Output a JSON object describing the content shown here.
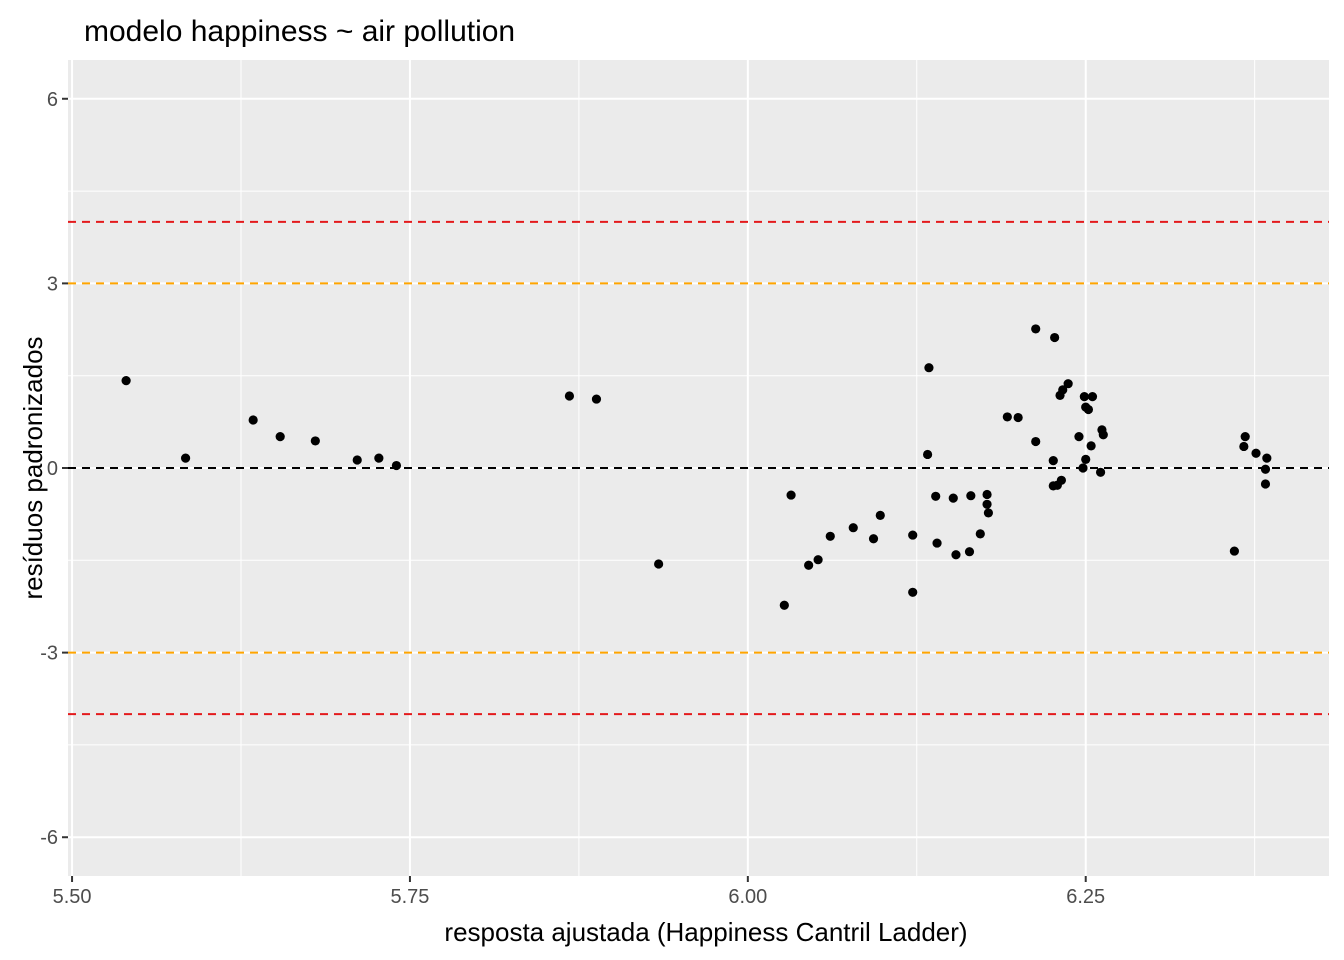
{
  "chart_data": {
    "type": "scatter",
    "title": "modelo happiness ~ air pollution",
    "xlabel": "resposta ajustada (Happiness Cantril Ladder)",
    "ylabel": "resíduos padronizados",
    "xlim": [
      5.497,
      6.43
    ],
    "ylim": [
      -6.63,
      6.63
    ],
    "x_ticks": [
      5.5,
      5.75,
      6.0,
      6.25
    ],
    "x_tick_labels": [
      "5.50",
      "5.75",
      "6.00",
      "6.25"
    ],
    "x_minor_ticks": [
      5.625,
      5.875,
      6.125,
      6.375
    ],
    "y_ticks": [
      -6,
      -3,
      0,
      3,
      6
    ],
    "y_tick_labels": [
      "-6",
      "-3",
      "0",
      "3",
      "6"
    ],
    "y_minor_ticks": [
      -4.5,
      -1.5,
      1.5,
      4.5
    ],
    "grid": true,
    "panel_background": "#ebebeb",
    "reference_lines": [
      {
        "y": 4,
        "color": "#e41a1c",
        "style": "dashed"
      },
      {
        "y": 3,
        "color": "#ffa500",
        "style": "dashed"
      },
      {
        "y": 0,
        "color": "#000000",
        "style": "dashed"
      },
      {
        "y": -3,
        "color": "#ffa500",
        "style": "dashed"
      },
      {
        "y": -4,
        "color": "#e41a1c",
        "style": "dashed"
      }
    ],
    "point_color": "#000000",
    "points": [
      {
        "x": 5.54,
        "y": 1.42
      },
      {
        "x": 5.584,
        "y": 0.16
      },
      {
        "x": 5.634,
        "y": 0.78
      },
      {
        "x": 5.654,
        "y": 0.51
      },
      {
        "x": 5.68,
        "y": 0.44
      },
      {
        "x": 5.711,
        "y": 0.13
      },
      {
        "x": 5.727,
        "y": 0.16
      },
      {
        "x": 5.74,
        "y": 0.04
      },
      {
        "x": 5.868,
        "y": 1.17
      },
      {
        "x": 5.888,
        "y": 1.12
      },
      {
        "x": 5.934,
        "y": -1.56
      },
      {
        "x": 6.027,
        "y": -2.23
      },
      {
        "x": 6.032,
        "y": -0.44
      },
      {
        "x": 6.045,
        "y": -1.58
      },
      {
        "x": 6.052,
        "y": -1.49
      },
      {
        "x": 6.061,
        "y": -1.11
      },
      {
        "x": 6.078,
        "y": -0.97
      },
      {
        "x": 6.093,
        "y": -1.15
      },
      {
        "x": 6.098,
        "y": -0.77
      },
      {
        "x": 6.122,
        "y": -2.02
      },
      {
        "x": 6.122,
        "y": -1.09
      },
      {
        "x": 6.133,
        "y": 0.22
      },
      {
        "x": 6.134,
        "y": 1.63
      },
      {
        "x": 6.139,
        "y": -0.46
      },
      {
        "x": 6.14,
        "y": -1.22
      },
      {
        "x": 6.152,
        "y": -0.49
      },
      {
        "x": 6.154,
        "y": -1.41
      },
      {
        "x": 6.164,
        "y": -1.36
      },
      {
        "x": 6.165,
        "y": -0.45
      },
      {
        "x": 6.172,
        "y": -1.07
      },
      {
        "x": 6.177,
        "y": -0.43
      },
      {
        "x": 6.177,
        "y": -0.59
      },
      {
        "x": 6.178,
        "y": -0.73
      },
      {
        "x": 6.192,
        "y": 0.83
      },
      {
        "x": 6.2,
        "y": 0.82
      },
      {
        "x": 6.213,
        "y": 2.26
      },
      {
        "x": 6.213,
        "y": 0.43
      },
      {
        "x": 6.226,
        "y": 0.12
      },
      {
        "x": 6.226,
        "y": -0.29
      },
      {
        "x": 6.227,
        "y": 2.12
      },
      {
        "x": 6.229,
        "y": -0.28
      },
      {
        "x": 6.231,
        "y": 1.18
      },
      {
        "x": 6.232,
        "y": -0.2
      },
      {
        "x": 6.233,
        "y": 1.27
      },
      {
        "x": 6.237,
        "y": 1.37
      },
      {
        "x": 6.245,
        "y": 0.51
      },
      {
        "x": 6.248,
        "y": 0.0
      },
      {
        "x": 6.249,
        "y": 1.16
      },
      {
        "x": 6.25,
        "y": 0.14
      },
      {
        "x": 6.25,
        "y": 0.99
      },
      {
        "x": 6.252,
        "y": 0.95
      },
      {
        "x": 6.254,
        "y": 0.36
      },
      {
        "x": 6.255,
        "y": 1.16
      },
      {
        "x": 6.261,
        "y": -0.07
      },
      {
        "x": 6.262,
        "y": 0.62
      },
      {
        "x": 6.263,
        "y": 0.54
      },
      {
        "x": 6.36,
        "y": -1.35
      },
      {
        "x": 6.367,
        "y": 0.35
      },
      {
        "x": 6.368,
        "y": 0.51
      },
      {
        "x": 6.376,
        "y": 0.24
      },
      {
        "x": 6.383,
        "y": -0.02
      },
      {
        "x": 6.383,
        "y": -0.26
      },
      {
        "x": 6.384,
        "y": 0.16
      }
    ]
  }
}
